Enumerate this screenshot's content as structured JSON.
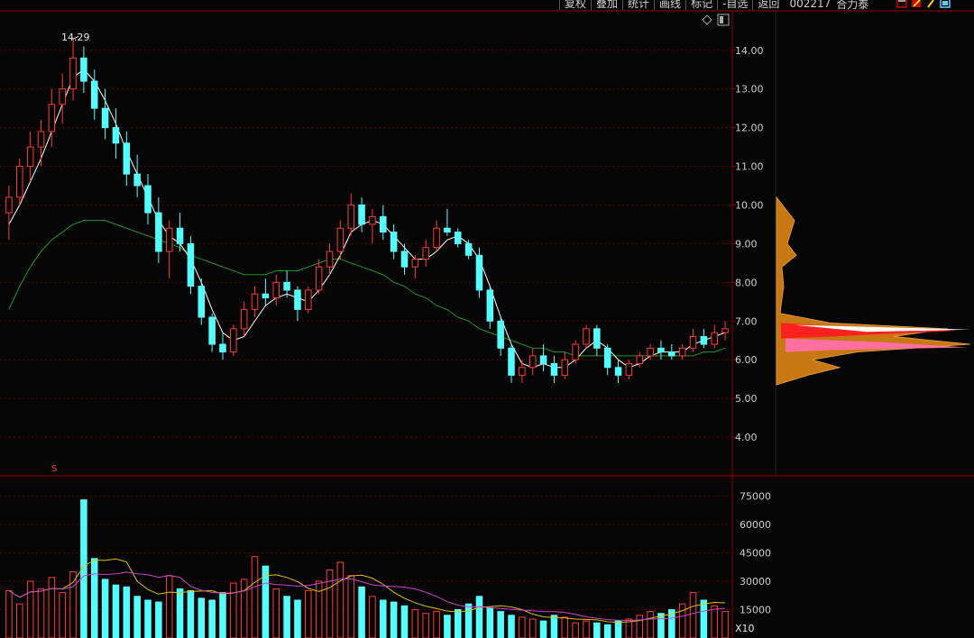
{
  "toolbar": {
    "buttons": [
      "复权",
      "叠加",
      "统计",
      "画线",
      "标记",
      "-自选",
      "返回"
    ],
    "stock_code": "002217",
    "stock_name": "合力泰"
  },
  "icons": [
    "chart-settings-icon",
    "draw-tool-icon",
    "pin-tool-icon",
    "screenshot-icon",
    "collapse-icon",
    "window-toggle-icon"
  ],
  "price_panel": {
    "high_label": "14.29",
    "y_ticks": [
      "14.00",
      "13.00",
      "12.00",
      "11.00",
      "10.00",
      "9.00",
      "8.00",
      "7.00",
      "6.00",
      "5.00",
      "4.00"
    ],
    "ex_right_marker": "S"
  },
  "volume_panel": {
    "y_ticks": [
      "75000",
      "60000",
      "45000",
      "30000",
      "15000"
    ],
    "unit": "X10"
  },
  "colors": {
    "up": "#ff3b30",
    "down": "#54ffff",
    "ma_short": "#ffffff",
    "ma_long": "#1d9a1d",
    "grid": "#5a0000",
    "axis": "#8b0000",
    "axis_text": "#cfcfcf",
    "vol_ma1": "#e0c000",
    "vol_ma2": "#cc44cc"
  },
  "chart_data": {
    "type": "candlestick",
    "ylim": [
      3.0,
      14.6
    ],
    "price_max": 14.29,
    "ohlc": [
      [
        9.8,
        10.5,
        9.1,
        10.2
      ],
      [
        10.2,
        11.2,
        10.0,
        11.0
      ],
      [
        11.0,
        11.9,
        10.6,
        11.5
      ],
      [
        11.5,
        12.2,
        11.0,
        11.9
      ],
      [
        11.9,
        13.0,
        11.5,
        12.6
      ],
      [
        12.6,
        13.4,
        12.1,
        13.0
      ],
      [
        13.0,
        14.29,
        12.7,
        13.8
      ],
      [
        13.8,
        14.1,
        12.9,
        13.2
      ],
      [
        13.2,
        13.5,
        12.2,
        12.5
      ],
      [
        12.5,
        13.0,
        11.7,
        12.0
      ],
      [
        12.0,
        12.5,
        11.2,
        11.6
      ],
      [
        11.6,
        11.9,
        10.5,
        10.8
      ],
      [
        10.8,
        11.3,
        10.2,
        10.5
      ],
      [
        10.5,
        10.8,
        9.5,
        9.8
      ],
      [
        9.8,
        10.2,
        8.5,
        8.8
      ],
      [
        8.8,
        9.6,
        8.1,
        9.4
      ],
      [
        9.4,
        9.8,
        8.8,
        9.0
      ],
      [
        9.0,
        9.2,
        7.7,
        7.9
      ],
      [
        7.9,
        8.1,
        6.9,
        7.1
      ],
      [
        7.1,
        7.2,
        6.2,
        6.4
      ],
      [
        6.4,
        6.7,
        6.0,
        6.2
      ],
      [
        6.2,
        6.9,
        6.1,
        6.8
      ],
      [
        6.8,
        7.5,
        6.6,
        7.3
      ],
      [
        7.3,
        7.9,
        7.1,
        7.7
      ],
      [
        7.7,
        8.1,
        7.4,
        7.6
      ],
      [
        7.6,
        8.2,
        7.4,
        8.0
      ],
      [
        8.0,
        8.3,
        7.6,
        7.8
      ],
      [
        7.8,
        7.9,
        7.0,
        7.3
      ],
      [
        7.3,
        7.9,
        7.2,
        7.8
      ],
      [
        7.8,
        8.6,
        7.7,
        8.4
      ],
      [
        8.4,
        9.0,
        8.2,
        8.8
      ],
      [
        8.8,
        9.6,
        8.6,
        9.4
      ],
      [
        9.4,
        10.3,
        9.2,
        10.0
      ],
      [
        10.0,
        10.2,
        9.3,
        9.5
      ],
      [
        9.5,
        9.9,
        9.0,
        9.7
      ],
      [
        9.7,
        10.0,
        9.1,
        9.3
      ],
      [
        9.3,
        9.5,
        8.6,
        8.8
      ],
      [
        8.8,
        9.0,
        8.2,
        8.4
      ],
      [
        8.4,
        8.7,
        8.1,
        8.6
      ],
      [
        8.6,
        9.1,
        8.4,
        8.9
      ],
      [
        8.9,
        9.6,
        8.8,
        9.4
      ],
      [
        9.4,
        9.9,
        9.2,
        9.3
      ],
      [
        9.3,
        9.4,
        8.9,
        9.0
      ],
      [
        9.0,
        9.1,
        8.6,
        8.7
      ],
      [
        8.7,
        8.9,
        7.6,
        7.8
      ],
      [
        7.8,
        7.9,
        6.8,
        7.0
      ],
      [
        7.0,
        7.1,
        6.1,
        6.3
      ],
      [
        6.3,
        6.4,
        5.4,
        5.6
      ],
      [
        5.6,
        6.0,
        5.4,
        5.8
      ],
      [
        5.8,
        6.3,
        5.6,
        6.1
      ],
      [
        6.1,
        6.4,
        5.7,
        5.9
      ],
      [
        5.9,
        6.1,
        5.4,
        5.6
      ],
      [
        5.6,
        6.2,
        5.5,
        6.0
      ],
      [
        6.0,
        6.5,
        5.9,
        6.4
      ],
      [
        6.4,
        6.9,
        6.3,
        6.8
      ],
      [
        6.8,
        6.9,
        6.1,
        6.3
      ],
      [
        6.3,
        6.4,
        5.6,
        5.8
      ],
      [
        5.8,
        6.0,
        5.4,
        5.6
      ],
      [
        5.6,
        6.0,
        5.5,
        5.9
      ],
      [
        5.9,
        6.2,
        5.8,
        6.1
      ],
      [
        6.1,
        6.4,
        6.0,
        6.3
      ],
      [
        6.3,
        6.5,
        6.0,
        6.2
      ],
      [
        6.2,
        6.4,
        6.0,
        6.1
      ],
      [
        6.1,
        6.4,
        6.0,
        6.3
      ],
      [
        6.3,
        6.8,
        6.2,
        6.6
      ],
      [
        6.6,
        6.8,
        6.3,
        6.4
      ],
      [
        6.4,
        6.9,
        6.3,
        6.7
      ],
      [
        6.7,
        7.0,
        6.5,
        6.8
      ]
    ],
    "ma_short": [
      9.5,
      10.0,
      10.6,
      11.2,
      11.9,
      12.6,
      13.3,
      13.5,
      13.2,
      12.7,
      12.1,
      11.4,
      10.8,
      10.2,
      9.6,
      9.2,
      9.0,
      8.6,
      8.0,
      7.3,
      6.7,
      6.5,
      6.6,
      7.0,
      7.4,
      7.6,
      7.7,
      7.6,
      7.5,
      7.8,
      8.2,
      8.7,
      9.3,
      9.5,
      9.6,
      9.5,
      9.2,
      8.9,
      8.6,
      8.6,
      8.8,
      9.1,
      9.2,
      9.0,
      8.6,
      7.9,
      7.1,
      6.4,
      5.9,
      5.8,
      5.9,
      5.8,
      5.8,
      6.0,
      6.3,
      6.5,
      6.3,
      6.0,
      5.8,
      5.9,
      6.1,
      6.2,
      6.2,
      6.2,
      6.4,
      6.5,
      6.6,
      6.7
    ],
    "ma_long": [
      7.3,
      7.9,
      8.4,
      8.8,
      9.1,
      9.3,
      9.5,
      9.6,
      9.6,
      9.6,
      9.5,
      9.4,
      9.3,
      9.2,
      9.1,
      9.0,
      8.9,
      8.7,
      8.6,
      8.5,
      8.4,
      8.3,
      8.2,
      8.2,
      8.2,
      8.3,
      8.3,
      8.3,
      8.4,
      8.5,
      8.6,
      8.6,
      8.5,
      8.4,
      8.3,
      8.2,
      8.0,
      7.9,
      7.7,
      7.6,
      7.4,
      7.3,
      7.1,
      7.0,
      6.8,
      6.7,
      6.6,
      6.5,
      6.4,
      6.3,
      6.3,
      6.2,
      6.2,
      6.1,
      6.1,
      6.1,
      6.1,
      6.1,
      6.1,
      6.1,
      6.1,
      6.1,
      6.1,
      6.1,
      6.1,
      6.2,
      6.2,
      6.3
    ],
    "volume_ylim": [
      0,
      80000
    ],
    "volume": [
      25000,
      18000,
      30000,
      26000,
      32000,
      24000,
      35000,
      73000,
      42000,
      31000,
      28000,
      27000,
      22000,
      20000,
      19000,
      33000,
      26000,
      25000,
      21000,
      20000,
      24000,
      29000,
      31000,
      43000,
      38000,
      26000,
      22000,
      20000,
      25000,
      30000,
      36000,
      40000,
      33000,
      27000,
      22000,
      20000,
      19000,
      17000,
      15000,
      13000,
      14000,
      12000,
      15000,
      18000,
      22000,
      16000,
      14000,
      12000,
      11000,
      10000,
      9000,
      12000,
      11000,
      8000,
      9000,
      8000,
      7000,
      9000,
      10000,
      12000,
      14000,
      13000,
      15000,
      18000,
      24000,
      20000,
      17000,
      14000
    ]
  }
}
